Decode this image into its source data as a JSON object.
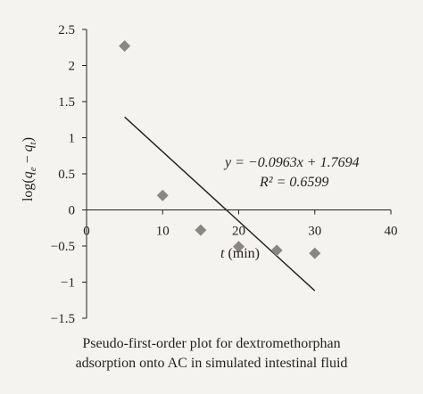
{
  "chart_data": {
    "type": "scatter",
    "xlabel_italic": "t",
    "xlabel_unit": "(min)",
    "ylabel": "log(q_e − q_t)",
    "xlim": [
      0,
      40
    ],
    "ylim": [
      -1.5,
      2.5
    ],
    "x_ticks": [
      "0",
      "10",
      "20",
      "30",
      "40"
    ],
    "y_ticks": [
      "2.5",
      "2",
      "1.5",
      "1",
      "0.5",
      "0",
      "−0.5",
      "−1",
      "−1.5"
    ],
    "points": [
      {
        "x": 5,
        "y": 2.27
      },
      {
        "x": 10,
        "y": 0.2
      },
      {
        "x": 15,
        "y": -0.28
      },
      {
        "x": 20,
        "y": -0.51
      },
      {
        "x": 25,
        "y": -0.56
      },
      {
        "x": 30,
        "y": -0.6
      }
    ],
    "trendline": {
      "slope": -0.0963,
      "intercept": 1.7694,
      "x_start": 5,
      "x_end": 30
    },
    "equation": "y = −0.0963x + 1.7694",
    "r_squared": "R² = 0.6599",
    "grid": false,
    "marker_color": "#8c8682",
    "line_color": "#231f20"
  },
  "caption": {
    "line1": "Pseudo-first-order plot for dextromethorphan",
    "line2": "adsorption onto AC in simulated intestinal fluid"
  }
}
